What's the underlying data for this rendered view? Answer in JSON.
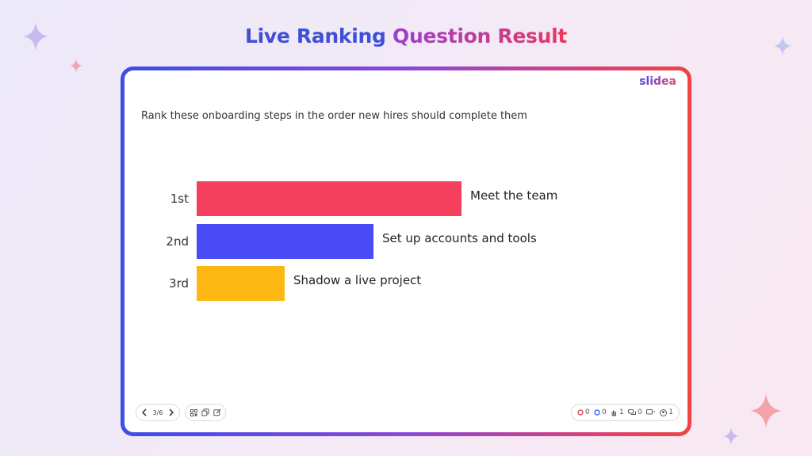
{
  "title": {
    "part1": "Live Ranking",
    "part2": "Question Result",
    "colors": [
      "#3f4fd8",
      "#9b3fd0",
      "#e8395f"
    ]
  },
  "slide": {
    "brand": "slidea",
    "question": "Rank these onboarding steps in the order new hires should complete them"
  },
  "chart_data": {
    "type": "bar",
    "orientation": "horizontal",
    "categories": [
      "1st",
      "2nd",
      "3rd"
    ],
    "item_labels": [
      "Meet the team",
      "Set up accounts and tools",
      "Shadow a live project"
    ],
    "values": [
      3,
      2,
      1
    ],
    "colors": [
      "#f4405c",
      "#4b4bf5",
      "#fdb813"
    ]
  },
  "nav": {
    "page": "3/6",
    "prev_icon": "chevron-left-icon",
    "next_icon": "chevron-right-icon"
  },
  "tools": {
    "icons": [
      "qr-code-icon",
      "copy-icon",
      "edit-icon"
    ]
  },
  "stats": {
    "icons": [
      "red-reaction-icon",
      "blue-reaction-icon",
      "raised-hand-icon",
      "chat-icon",
      "flag-icon",
      "participants-icon"
    ],
    "red_count": "0",
    "blue_count": "0",
    "hands": "1",
    "chats": "0",
    "participants": "1",
    "red_color": "#e84a5f",
    "blue_color": "#3a6ee8"
  },
  "theme": {
    "frame_gradient": [
      "#3d4ee6",
      "#8a48d8",
      "#d8407a",
      "#ee4444"
    ],
    "sparkle_purple": "#c7b6f0",
    "sparkle_pink": "#f2a3b5"
  }
}
